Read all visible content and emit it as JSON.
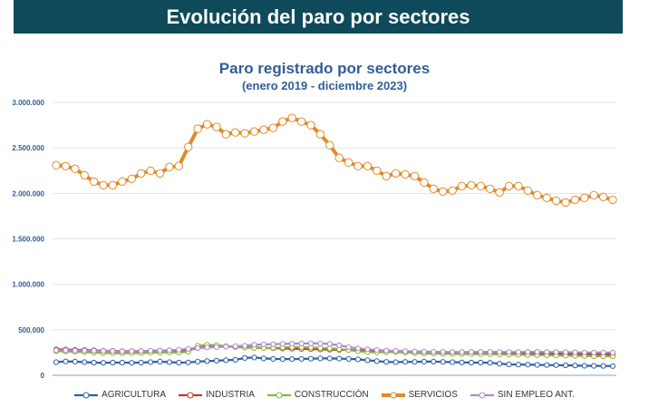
{
  "header": {
    "title": "Evolución del paro por sectores"
  },
  "chart_data": {
    "type": "line",
    "title": "Paro registrado por sectores",
    "subtitle": "(enero 2019 - diciembre 2023)",
    "xlabel": "",
    "ylabel": "",
    "ylim": [
      0,
      3000000
    ],
    "ytick_values": [
      0,
      500000,
      1000000,
      1500000,
      2000000,
      2500000,
      3000000
    ],
    "ytick_labels": [
      "0",
      "500.000",
      "1.000.000",
      "1.500.000",
      "2.000.000",
      "2.500.000",
      "3.000.000"
    ],
    "grid": true,
    "legend_position": "bottom",
    "series": [
      {
        "name": "AGRICULTURA",
        "color": "#2e5fa3",
        "values": [
          145000,
          152000,
          150000,
          145000,
          140000,
          138000,
          140000,
          140000,
          138000,
          140000,
          145000,
          150000,
          145000,
          140000,
          142000,
          150000,
          155000,
          160000,
          165000,
          170000,
          190000,
          195000,
          185000,
          180000,
          178000,
          178000,
          180000,
          182000,
          185000,
          185000,
          183000,
          180000,
          175000,
          165000,
          155000,
          148000,
          145000,
          148000,
          148000,
          150000,
          150000,
          148000,
          145000,
          142000,
          140000,
          140000,
          138000,
          128000,
          120000,
          118000,
          118000,
          115000,
          113000,
          112000,
          110000,
          108000,
          105000,
          104000,
          103000,
          102000
        ]
      },
      {
        "name": "INDUSTRIA",
        "color": "#c0392b",
        "values": [
          285000,
          283000,
          280000,
          278000,
          275000,
          270000,
          268000,
          265000,
          265000,
          266000,
          268000,
          270000,
          272000,
          270000,
          275000,
          300000,
          315000,
          320000,
          318000,
          312000,
          308000,
          305000,
          302000,
          298000,
          295000,
          292000,
          290000,
          288000,
          285000,
          282000,
          280000,
          278000,
          275000,
          270000,
          268000,
          265000,
          262000,
          260000,
          258000,
          256000,
          254000,
          252000,
          250000,
          248000,
          246000,
          244000,
          243000,
          242000,
          241000,
          240000,
          239000,
          238000,
          237000,
          236000,
          235000,
          234000,
          233000,
          232000,
          231000,
          230000
        ]
      },
      {
        "name": "CONSTRUCCIÓN",
        "color": "#8ab43a",
        "values": [
          265000,
          262000,
          258000,
          255000,
          250000,
          245000,
          243000,
          242000,
          243000,
          245000,
          248000,
          250000,
          252000,
          250000,
          258000,
          325000,
          335000,
          330000,
          320000,
          310000,
          305000,
          300000,
          300000,
          302000,
          305000,
          310000,
          308000,
          305000,
          300000,
          295000,
          288000,
          278000,
          265000,
          255000,
          252000,
          255000,
          255000,
          250000,
          245000,
          240000,
          238000,
          236000,
          235000,
          234000,
          233000,
          232000,
          232000,
          230000,
          228000,
          226000,
          224000,
          222000,
          220000,
          218000,
          216000,
          214000,
          212000,
          210000,
          209000,
          208000
        ]
      },
      {
        "name": "SERVICIOS",
        "color": "#e08a2c",
        "values": [
          2310000,
          2300000,
          2270000,
          2200000,
          2130000,
          2090000,
          2090000,
          2130000,
          2160000,
          2220000,
          2250000,
          2220000,
          2290000,
          2300000,
          2510000,
          2710000,
          2760000,
          2730000,
          2650000,
          2670000,
          2660000,
          2680000,
          2700000,
          2720000,
          2790000,
          2830000,
          2790000,
          2750000,
          2650000,
          2530000,
          2390000,
          2340000,
          2300000,
          2300000,
          2250000,
          2190000,
          2220000,
          2210000,
          2190000,
          2120000,
          2050000,
          2020000,
          2030000,
          2080000,
          2090000,
          2080000,
          2050000,
          2010000,
          2080000,
          2080000,
          2030000,
          1980000,
          1950000,
          1920000,
          1900000,
          1930000,
          1950000,
          1980000,
          1960000,
          1930000
        ]
      },
      {
        "name": "SIN EMPLEO ANT.",
        "color": "#a98bc4",
        "values": [
          275000,
          275000,
          273000,
          272000,
          270000,
          268000,
          265000,
          264000,
          265000,
          267000,
          270000,
          272000,
          275000,
          280000,
          290000,
          300000,
          305000,
          310000,
          315000,
          320000,
          325000,
          335000,
          340000,
          342000,
          345000,
          348000,
          350000,
          352000,
          350000,
          345000,
          330000,
          310000,
          295000,
          285000,
          278000,
          272000,
          268000,
          265000,
          262000,
          260000,
          258000,
          257000,
          256000,
          256000,
          257000,
          258000,
          258000,
          257000,
          256000,
          256000,
          257000,
          258000,
          256000,
          255000,
          254000,
          252000,
          251000,
          250000,
          250000,
          249000
        ]
      }
    ]
  }
}
